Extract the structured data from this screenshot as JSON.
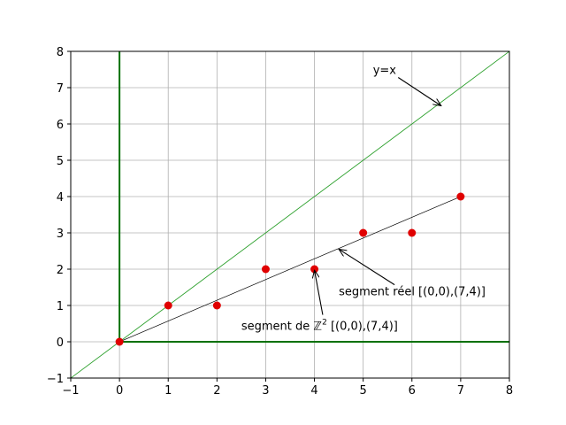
{
  "chart_data": {
    "type": "scatter",
    "title": "",
    "xlabel": "",
    "ylabel": "",
    "xlim": [
      -1,
      8
    ],
    "ylim": [
      -1,
      8
    ],
    "xticks": [
      -1,
      0,
      1,
      2,
      3,
      4,
      5,
      6,
      7,
      8
    ],
    "yticks": [
      -1,
      0,
      1,
      2,
      3,
      4,
      5,
      6,
      7,
      8
    ],
    "grid": true,
    "legend": "none",
    "colors": {
      "points": "#e00000",
      "axes_lines": "#007000",
      "identity_line": "#2ca02c",
      "real_segment": "#000000",
      "grid": "#b0b0b0"
    },
    "series": [
      {
        "kind": "line",
        "x": [
          -1,
          8
        ],
        "y": [
          -1,
          8
        ],
        "color": "#2ca02c"
      },
      {
        "kind": "line",
        "x": [
          0,
          7
        ],
        "y": [
          0,
          4
        ],
        "color": "#000000"
      },
      {
        "kind": "points",
        "x": [
          0,
          1,
          2,
          3,
          4,
          5,
          6,
          7
        ],
        "y": [
          0,
          1,
          1,
          2,
          2,
          3,
          3,
          4
        ],
        "color": "#e00000"
      }
    ],
    "reference_lines": [
      {
        "orientation": "vertical",
        "x": 0,
        "y_range": [
          0,
          8
        ],
        "color": "#007000"
      },
      {
        "orientation": "horizontal",
        "y": 0,
        "x_range": [
          0,
          8
        ],
        "color": "#007000"
      }
    ],
    "annotations": [
      {
        "id": "yx",
        "parts": [
          "y=x"
        ],
        "text_at": [
          5.2,
          7.5
        ],
        "arrow_to": [
          6.6,
          6.5
        ]
      },
      {
        "id": "reel",
        "parts": [
          "segment réel [(0,0),(7,4)]"
        ],
        "text_at": [
          4.5,
          1.4
        ],
        "arrow_to": [
          4.5,
          2.55
        ]
      },
      {
        "id": "z2",
        "parts": [
          "segment de  ℤ",
          "2",
          " [(0,0),(7,4)]"
        ],
        "text_at": [
          2.5,
          0.45
        ],
        "arrow_to": [
          4.0,
          1.97
        ]
      }
    ]
  }
}
